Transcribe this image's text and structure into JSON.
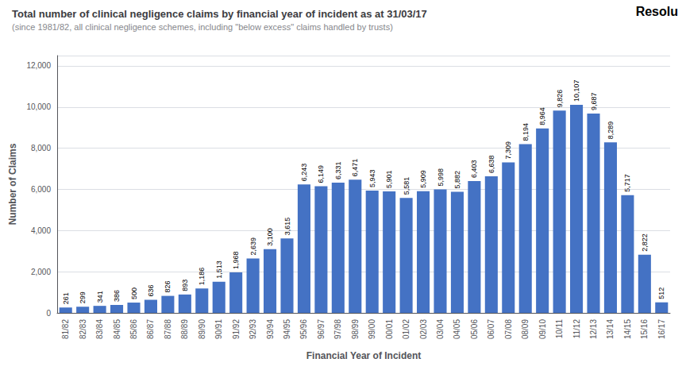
{
  "chart_data": {
    "type": "bar",
    "title": "Total number of clinical negligence claims by financial year of incident as at 31/03/17",
    "subtitle": "(since 1981/82, all clinical negligence schemes, including \"below excess\" claims handled by trusts)",
    "annotations": [
      "Resolu"
    ],
    "xlabel": "Financial Year of Incident",
    "ylabel": "Number of Claims",
    "categories": [
      "81/82",
      "82/83",
      "83/84",
      "84/85",
      "85/86",
      "86/87",
      "87/88",
      "88/89",
      "89/90",
      "90/91",
      "91/92",
      "92/93",
      "93/94",
      "94/95",
      "95/96",
      "96/97",
      "97/98",
      "98/99",
      "99/00",
      "00/01",
      "01/02",
      "02/03",
      "03/04",
      "04/05",
      "05/06",
      "06/07",
      "07/08",
      "08/09",
      "09/10",
      "10/11",
      "11/12",
      "12/13",
      "13/14",
      "14/15",
      "15/16",
      "16/17"
    ],
    "values": [
      261,
      299,
      341,
      386,
      500,
      636,
      826,
      893,
      1186,
      1513,
      1968,
      2639,
      3100,
      3615,
      6243,
      6149,
      6331,
      6471,
      5943,
      5901,
      5581,
      5909,
      5998,
      5882,
      6403,
      6638,
      7309,
      8194,
      8964,
      9826,
      10107,
      9687,
      8289,
      5717,
      2822,
      512
    ],
    "value_labels": [
      "261",
      "299",
      "341",
      "386",
      "500",
      "636",
      "826",
      "893",
      "1,186",
      "1,513",
      "1,968",
      "2,639",
      "3,100",
      "3,615",
      "6,243",
      "6,149",
      "6,331",
      "6,471",
      "5,943",
      "5,901",
      "5,581",
      "5,909",
      "5,998",
      "5,882",
      "6,403",
      "6,638",
      "7,309",
      "8,194",
      "8,964",
      "9,826",
      "10,107",
      "9,687",
      "8,289",
      "5,717",
      "2,822",
      "512"
    ],
    "data_labels": true,
    "color": "#4472C4",
    "ylim": [
      0,
      12500
    ],
    "yticks": [
      0,
      {
        "value": 2000,
        "label": "2,000"
      },
      {
        "value": 4000,
        "label": "4,000"
      },
      {
        "value": 6000,
        "label": "6,000"
      },
      {
        "value": 8000,
        "label": "8,000"
      },
      {
        "value": 10000,
        "label": "10,000"
      },
      {
        "value": 12000,
        "label": "12,000"
      }
    ],
    "grid": true
  }
}
